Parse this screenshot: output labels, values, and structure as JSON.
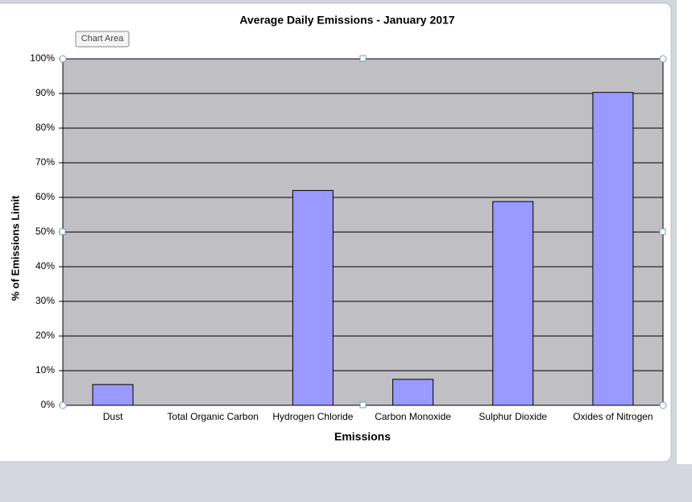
{
  "tooltip": "Chart Area",
  "chart_data": {
    "type": "bar",
    "title": "Average Daily Emissions  - January 2017",
    "x_label": "Emissions",
    "y_label": "% of Emissions  Limit",
    "categories": [
      "Dust",
      "Total Organic Carbon",
      "Hydrogen Chloride",
      "Carbon Monoxide",
      "Sulphur Dioxide",
      "Oxides of Nitrogen"
    ],
    "values": [
      6,
      0,
      62,
      7.5,
      58.8,
      90.3
    ],
    "color": "#9999ff",
    "plot_background": "#c0bfc4",
    "grid": true,
    "ylim": [
      0,
      100
    ],
    "yticks": [
      {
        "value": 0,
        "label": "0%"
      },
      {
        "value": 10,
        "label": "10%"
      },
      {
        "value": 20,
        "label": "20%"
      },
      {
        "value": 30,
        "label": "30%"
      },
      {
        "value": 40,
        "label": "40%"
      },
      {
        "value": 50,
        "label": "50%"
      },
      {
        "value": 60,
        "label": "60%"
      },
      {
        "value": 70,
        "label": "70%"
      },
      {
        "value": 80,
        "label": "80%"
      },
      {
        "value": 90,
        "label": "90%"
      },
      {
        "value": 100,
        "label": "100%"
      }
    ]
  }
}
